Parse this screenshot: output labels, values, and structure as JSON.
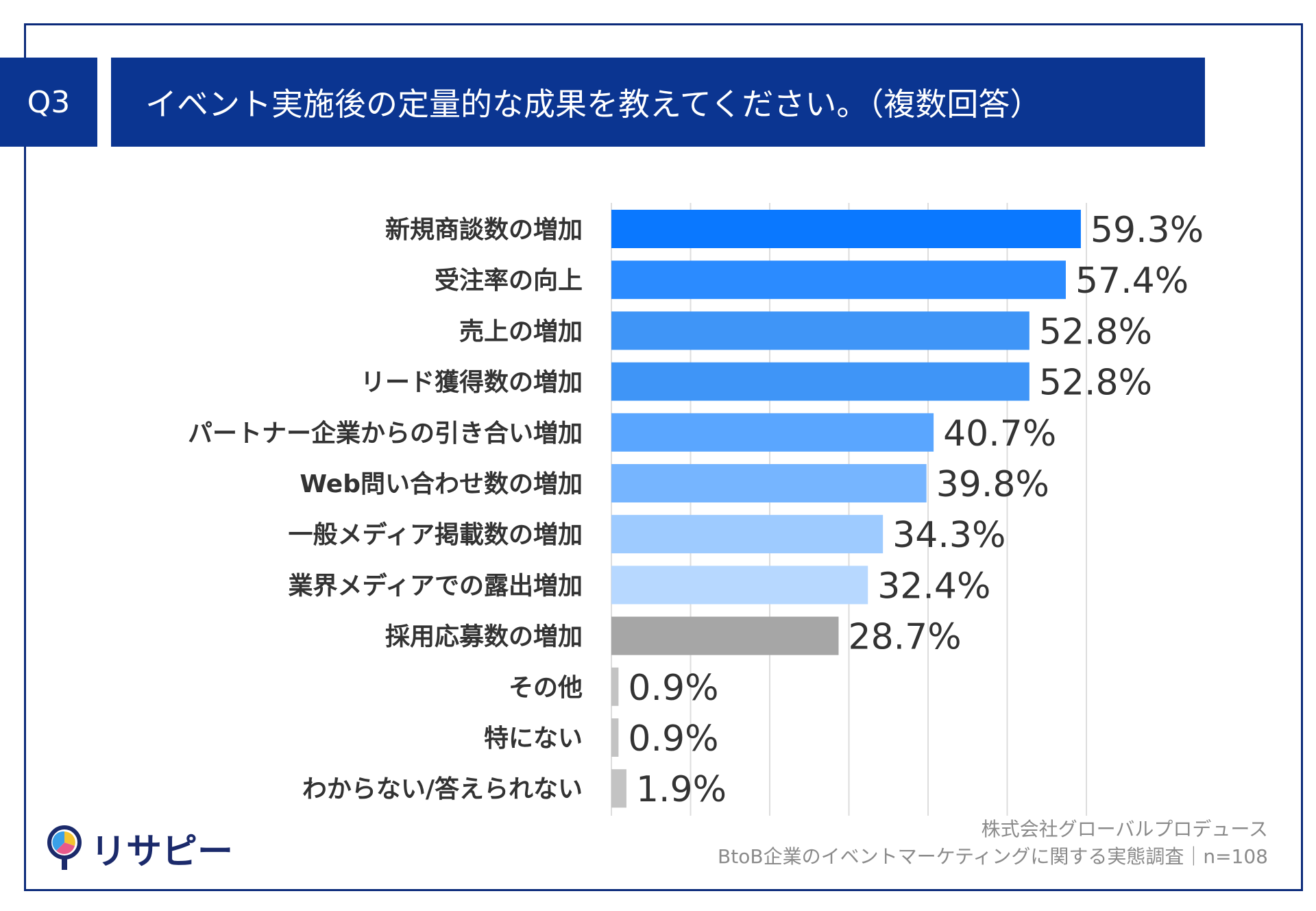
{
  "header": {
    "question_no": "Q3",
    "title": "イベント実施後の定量的な成果を教えてください。（複数回答）"
  },
  "chart_data": {
    "type": "bar",
    "orientation": "horizontal",
    "categories": [
      "新規商談数の増加",
      "受注率の向上",
      "売上の増加",
      "リード獲得数の増加",
      "パートナー企業からの引き合い増加",
      "Web問い合わせ数の増加",
      "一般メディア掲載数の増加",
      "業界メディアでの露出増加",
      "採用応募数の増加",
      "その他",
      "特にない",
      "わからない/答えられない"
    ],
    "values": [
      59.3,
      57.4,
      52.8,
      52.8,
      40.7,
      39.8,
      34.3,
      32.4,
      28.7,
      0.9,
      0.9,
      1.9
    ],
    "value_labels": [
      "59.3%",
      "57.4%",
      "52.8%",
      "52.8%",
      "40.7%",
      "39.8%",
      "34.3%",
      "32.4%",
      "28.7%",
      "0.9%",
      "0.9%",
      "1.9%"
    ],
    "bar_colors": [
      "#0a78ff",
      "#2b8bff",
      "#3f95f7",
      "#3f95f7",
      "#5aa6ff",
      "#76b5ff",
      "#9ecbff",
      "#b7d8ff",
      "#a6a6a6",
      "#c3c3c3",
      "#c3c3c3",
      "#c3c3c3"
    ],
    "xlim": [
      0,
      60
    ],
    "grid": true,
    "unit": "%"
  },
  "logo": {
    "text": "リサピー"
  },
  "footer": {
    "company": "株式会社グローバルプロデュース",
    "survey": "BtoB企業のイベントマーケティングに関する実態調査｜n=108"
  }
}
